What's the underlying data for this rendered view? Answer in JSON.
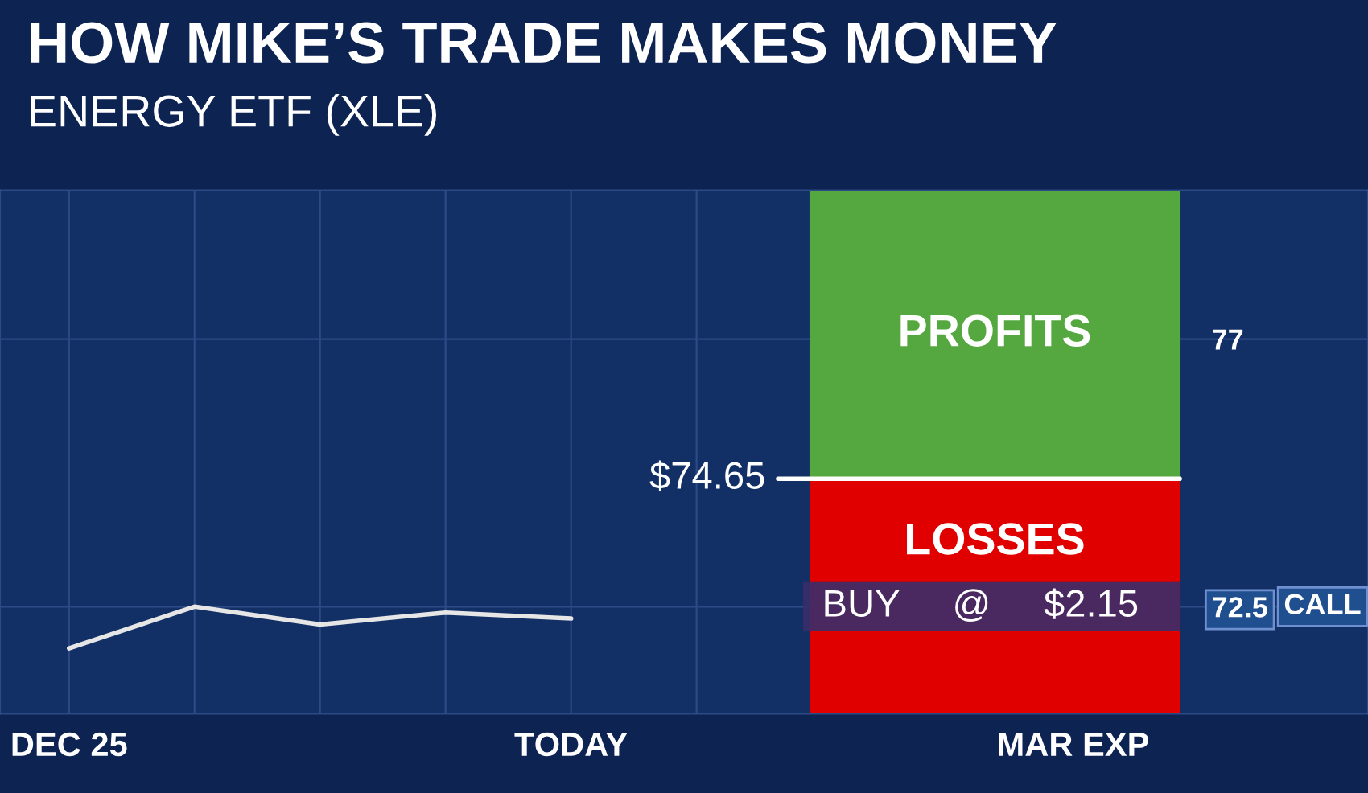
{
  "chart_data": {
    "type": "line",
    "title": "HOW MIKE’S TRADE MAKES MONEY",
    "subtitle": "ENERGY ETF (XLE)",
    "categories": [
      "DEC 25",
      null,
      null,
      null,
      "TODAY",
      null,
      null,
      null,
      "MAR EXP"
    ],
    "series": [
      {
        "color": "#e6e6e6",
        "values": [
          71.8,
          72.5,
          72.2,
          72.4,
          72.3,
          null,
          null,
          null,
          null
        ]
      }
    ],
    "ylim": [
      70.7,
      79.5
    ],
    "yticks": [
      77,
      72.5
    ],
    "bands": [
      {
        "axis": "y",
        "from": 74.65,
        "to": 79.5,
        "label": "PROFITS",
        "color": "#55a73f"
      },
      {
        "axis": "y",
        "from": 70.7,
        "to": 74.65,
        "label": "LOSSES",
        "color": "#e00000"
      }
    ],
    "ref_lines": [
      {
        "axis": "y",
        "value": 74.65,
        "label": "$74.65",
        "color": "#ffffff"
      },
      {
        "axis": "y",
        "value": 72.5,
        "label": "BUY     @     $2.15",
        "color": "#3a2d6a"
      }
    ],
    "annotations": [
      "CALL"
    ],
    "grid": true,
    "marker": "none",
    "line_style": "solid"
  }
}
